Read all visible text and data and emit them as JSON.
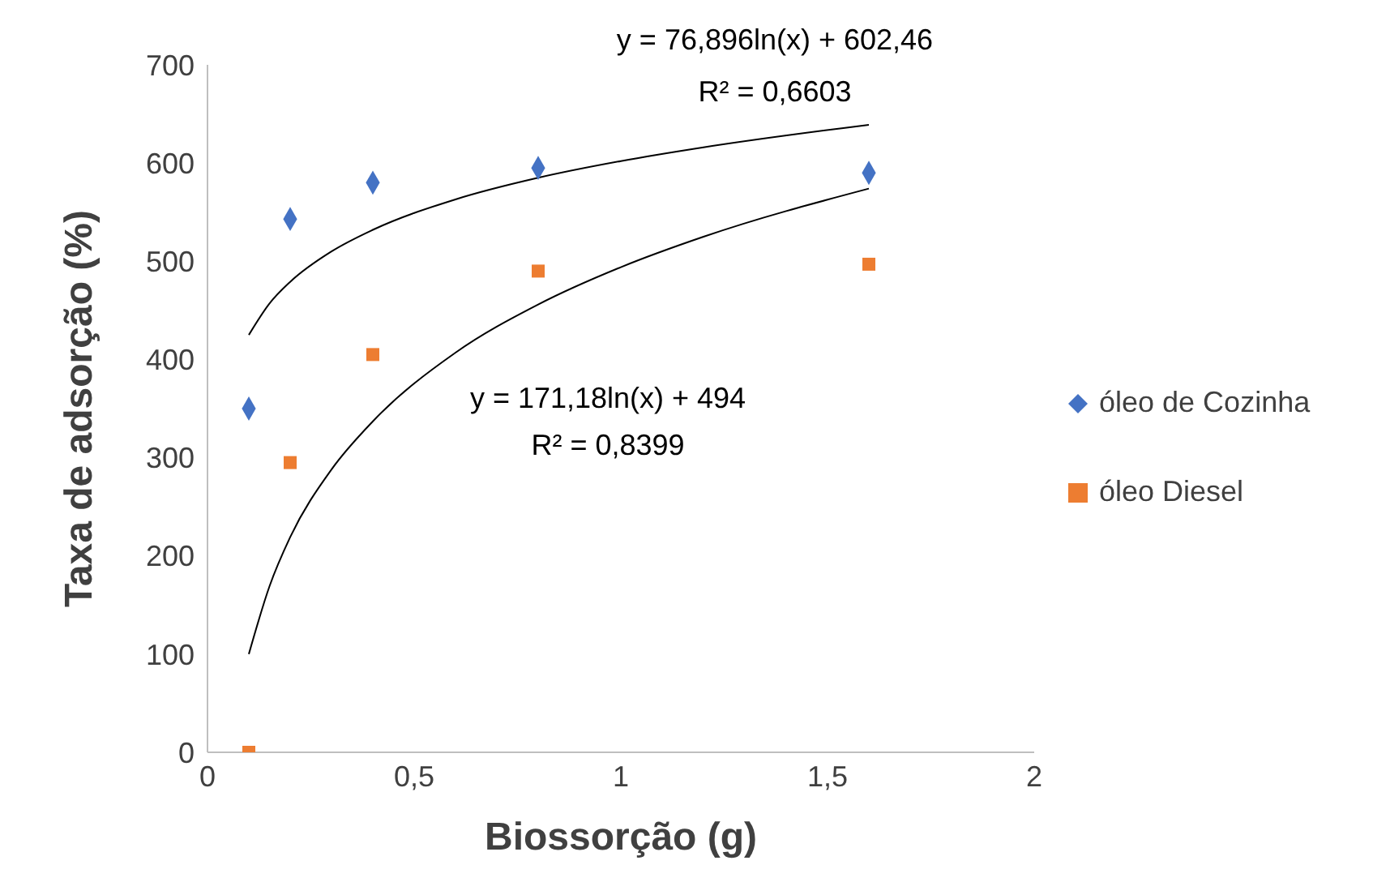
{
  "chart_data": {
    "type": "scatter",
    "xlabel": "Biossorção (g)",
    "ylabel": "Taxa de adsorção (%)",
    "xlim": [
      0,
      2
    ],
    "xticks": [
      0,
      {
        "value": 0.5,
        "label": "0,5"
      },
      1,
      {
        "value": 1.5,
        "label": "1,5"
      },
      2
    ],
    "ylim": [
      0,
      700
    ],
    "yticks": [
      0,
      100,
      200,
      300,
      400,
      500,
      600,
      700
    ],
    "legend": "right",
    "series": [
      {
        "name": "óleo de Cozinha",
        "color": "#4472c4",
        "marker": "diamond",
        "x": [
          0.1,
          0.2,
          0.4,
          0.8,
          1.6
        ],
        "values": [
          350,
          543,
          580,
          595,
          590
        ]
      },
      {
        "name": "óleo Diesel",
        "color": "#ed7d31",
        "marker": "square",
        "x": [
          0.1,
          0.2,
          0.4,
          0.8,
          1.6
        ],
        "values": [
          0,
          295,
          405,
          490,
          497
        ]
      },
      {
        "type": "line",
        "color": "#000000",
        "marker": "none",
        "x": [
          0.1,
          0.15,
          0.2,
          0.3,
          0.4,
          0.6,
          0.8,
          1.0,
          1.2,
          1.6
        ],
        "values": [
          425,
          457,
          479,
          510,
          532,
          563,
          585,
          602,
          616,
          639
        ]
      },
      {
        "type": "line",
        "color": "#000000",
        "marker": "none",
        "x": [
          0.1,
          0.15,
          0.2,
          0.3,
          0.4,
          0.6,
          0.8,
          1.0,
          1.2,
          1.6
        ],
        "values": [
          100,
          169,
          219,
          288,
          337,
          407,
          456,
          494,
          525,
          574
        ]
      }
    ],
    "annotations": [
      "y = 76,896ln(x) + 602,46",
      "R² = 0,6603",
      "y = 171,18ln(x) + 494",
      "R² = 0,8399"
    ]
  }
}
